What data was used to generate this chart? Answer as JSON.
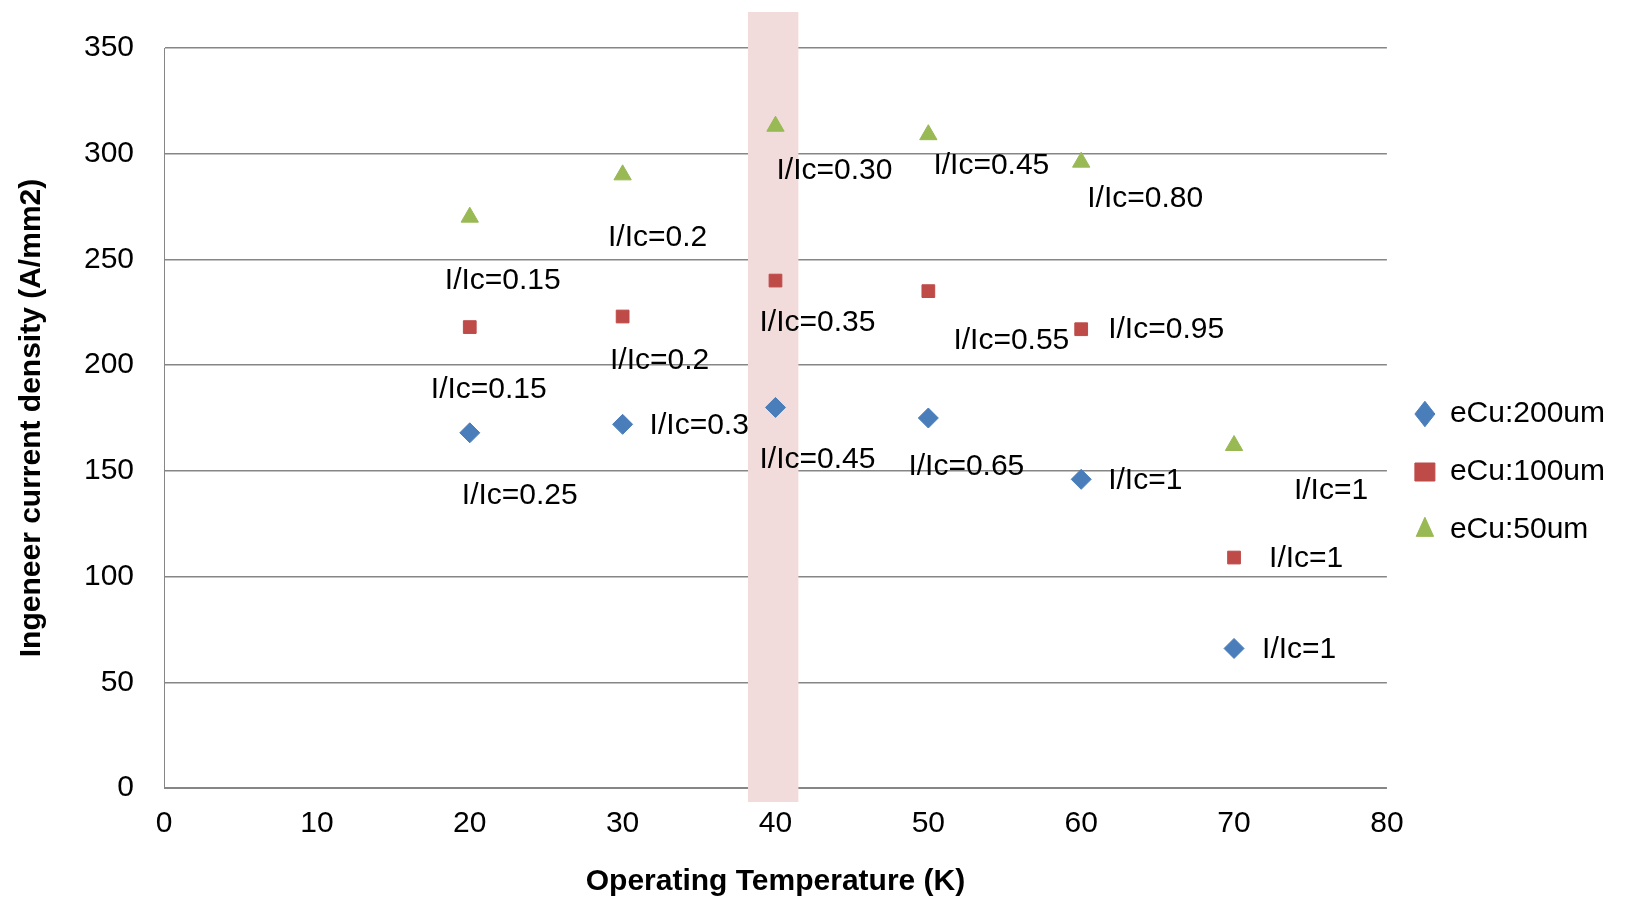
{
  "chart_data": {
    "type": "scatter",
    "xlabel": "Operating Temperature (K)",
    "ylabel": "Ingeneer current density (A/mm2)",
    "x": [
      20,
      30,
      40,
      50,
      60,
      70
    ],
    "series": [
      {
        "name": "eCu:200um",
        "color": "#4a7ebb",
        "marker": "diamond",
        "values": [
          168,
          172,
          180,
          175,
          146,
          66
        ]
      },
      {
        "name": "eCu:100um",
        "color": "#be4b48",
        "marker": "square",
        "values": [
          218,
          223,
          240,
          235,
          217,
          109
        ]
      },
      {
        "name": "eCu:50um",
        "color": "#98b954",
        "marker": "triangle",
        "values": [
          270,
          290,
          313,
          309,
          296,
          162
        ]
      }
    ],
    "annotations": [
      {
        "text": "I/Ic=0.25",
        "x": 20,
        "y": 168
      },
      {
        "text": "I/Ic=0.3",
        "x": 30,
        "y": 172
      },
      {
        "text": "I/Ic=0.45",
        "x": 40,
        "y": 180
      },
      {
        "text": "I/Ic=0.65",
        "x": 50,
        "y": 175
      },
      {
        "text": "I/Ic=1",
        "x": 60,
        "y": 146
      },
      {
        "text": "I/Ic=1",
        "x": 70,
        "y": 66
      },
      {
        "text": "I/Ic=0.15",
        "x": 20,
        "y": 218
      },
      {
        "text": "I/Ic=0.2",
        "x": 30,
        "y": 223
      },
      {
        "text": "I/Ic=0.35",
        "x": 40,
        "y": 240
      },
      {
        "text": "I/Ic=0.55",
        "x": 50,
        "y": 235
      },
      {
        "text": "I/Ic=0.95",
        "x": 60,
        "y": 217
      },
      {
        "text": "I/Ic=1",
        "x": 70,
        "y": 109
      },
      {
        "text": "I/Ic=0.15",
        "x": 20,
        "y": 270
      },
      {
        "text": "I/Ic=0.2",
        "x": 30,
        "y": 290
      },
      {
        "text": "I/Ic=0.30",
        "x": 40,
        "y": 313
      },
      {
        "text": "I/Ic=0.45",
        "x": 50,
        "y": 309
      },
      {
        "text": "I/Ic=0.80",
        "x": 60,
        "y": 296
      },
      {
        "text": "I/Ic=1",
        "x": 70,
        "y": 162
      }
    ],
    "xlim": [
      0,
      80
    ],
    "xticks": [
      0,
      10,
      20,
      30,
      40,
      50,
      60,
      70,
      80
    ],
    "ylim": [
      0,
      350
    ],
    "yticks": [
      0,
      50,
      100,
      150,
      200,
      250,
      300,
      350
    ],
    "bands": [
      {
        "axis": "x",
        "from": 38.2,
        "to": 41.5,
        "color": "#f2dcdb"
      }
    ],
    "grid": "y",
    "legend": "right"
  }
}
